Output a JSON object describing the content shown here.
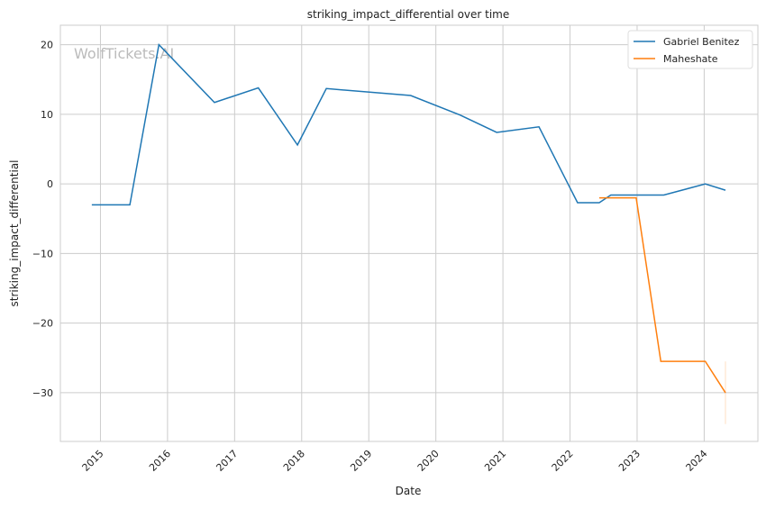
{
  "chart_data": {
    "type": "line",
    "title": "striking_impact_differential over time",
    "xlabel": "Date",
    "ylabel": "striking_impact_differential",
    "watermark": "WolfTickets.AI",
    "xlim": [
      "2014-05-28",
      "2024-10-20"
    ],
    "ylim": [
      -37,
      22.8
    ],
    "x_ticks": [
      "2015",
      "2016",
      "2017",
      "2018",
      "2019",
      "2020",
      "2021",
      "2022",
      "2023",
      "2024"
    ],
    "y_ticks": [
      20,
      10,
      0,
      -10,
      -20,
      -30
    ],
    "y_tick_labels": [
      "20",
      "10",
      "0",
      "−10",
      "−20",
      "−30"
    ],
    "grid": true,
    "legend_position": "top-right",
    "series": [
      {
        "name": "Gabriel Benitez",
        "color": "#1f77b4",
        "x": [
          "2014-11-15",
          "2015-06-10",
          "2015-11-15",
          "2016-09-13",
          "2017-05-10",
          "2017-12-09",
          "2018-05-15",
          "2019-08-17",
          "2020-05-12",
          "2020-11-28",
          "2021-07-16",
          "2022-02-11",
          "2022-06-09",
          "2022-08-11",
          "2023-05-26",
          "2024-01-07",
          "2024-04-26"
        ],
        "y": [
          -3,
          -3,
          20,
          11.7,
          13.8,
          5.6,
          13.7,
          12.7,
          9.9,
          7.4,
          8.2,
          -2.7,
          -2.7,
          -1.6,
          -1.6,
          0,
          -0.9
        ]
      },
      {
        "name": "Maheshate",
        "color": "#ff7f0e",
        "x": [
          "2022-06-09",
          "2022-12-27",
          "2023-05-10",
          "2024-01-07",
          "2024-04-26"
        ],
        "y": [
          -2,
          -2,
          -25.5,
          -25.5,
          -30
        ],
        "interval_at_last": [
          -34.5,
          -25.5
        ]
      }
    ]
  }
}
